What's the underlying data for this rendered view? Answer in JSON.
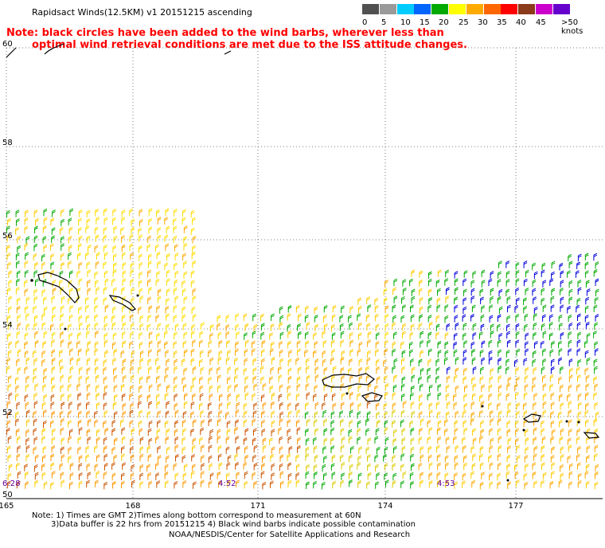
{
  "title": "Rapidsact Winds(12.5KM) v1 20151215 ascending",
  "note_line1": "Note: black circles have been added to the wind barbs, wherever less than",
  "note_line2": "optimal wind retrieval conditions are met due to the ISS attitude changes.",
  "legend": {
    "labels": [
      "0",
      "5",
      "10",
      "15",
      "20",
      "25",
      "30",
      "35",
      "40",
      "45",
      ">50 knots"
    ],
    "colors": [
      "#505050",
      "#9a9a9a",
      "#00ccff",
      "#0066ff",
      "#00aa00",
      "#ffff00",
      "#ffaa00",
      "#ff6600",
      "#ff0000",
      "#8b3a1a",
      "#cc00cc",
      "#6600cc"
    ]
  },
  "map": {
    "lat_labels": [
      "60",
      "58",
      "56",
      "54",
      "52",
      "50"
    ],
    "lon_labels": [
      "165",
      "168",
      "171",
      "174",
      "177"
    ],
    "time_labels": [
      "6:28",
      "4:52",
      "4:53"
    ]
  },
  "footer": {
    "line1": "Note: 1) Times are GMT 2)Times along bottom correspond to measurement at 60N",
    "line2": "3)Data buffer is 22 hrs from 20151215 4) Black wind barbs indicate possible contamination",
    "line3": "NOAA/NESDIS/Center for Satellite Applications and Research"
  }
}
